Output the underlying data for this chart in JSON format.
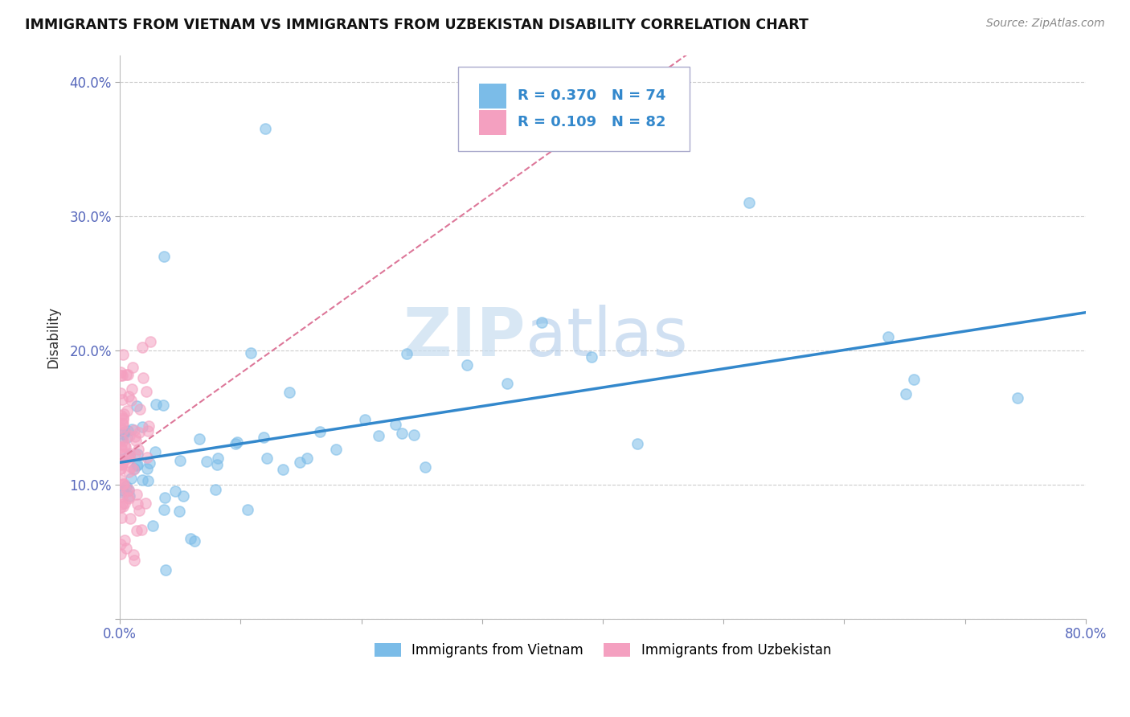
{
  "title": "IMMIGRANTS FROM VIETNAM VS IMMIGRANTS FROM UZBEKISTAN DISABILITY CORRELATION CHART",
  "source": "Source: ZipAtlas.com",
  "ylabel": "Disability",
  "xlabel": "",
  "xlim": [
    0.0,
    0.8
  ],
  "ylim": [
    0.0,
    0.42
  ],
  "xticks": [
    0.0,
    0.1,
    0.2,
    0.3,
    0.4,
    0.5,
    0.6,
    0.7,
    0.8
  ],
  "yticks": [
    0.0,
    0.1,
    0.2,
    0.3,
    0.4
  ],
  "xticklabels": [
    "0.0%",
    "",
    "",
    "",
    "",
    "",
    "",
    "",
    "80.0%"
  ],
  "yticklabels": [
    "",
    "10.0%",
    "20.0%",
    "30.0%",
    "40.0%"
  ],
  "vietnam_color": "#7bbce8",
  "uzbekistan_color": "#f4a0c0",
  "vietnam_trend_color": "#3388cc",
  "uzbekistan_trend_color": "#dd7799",
  "vietnam_R": 0.37,
  "vietnam_N": 74,
  "uzbekistan_R": 0.109,
  "uzbekistan_N": 82,
  "legend_label_vietnam": "Immigrants from Vietnam",
  "legend_label_uzbekistan": "Immigrants from Uzbekistan",
  "watermark_zip": "ZIP",
  "watermark_atlas": "atlas",
  "background_color": "#ffffff",
  "grid_color": "#cccccc",
  "tick_color": "#5566bb",
  "title_color": "#111111",
  "source_color": "#888888"
}
